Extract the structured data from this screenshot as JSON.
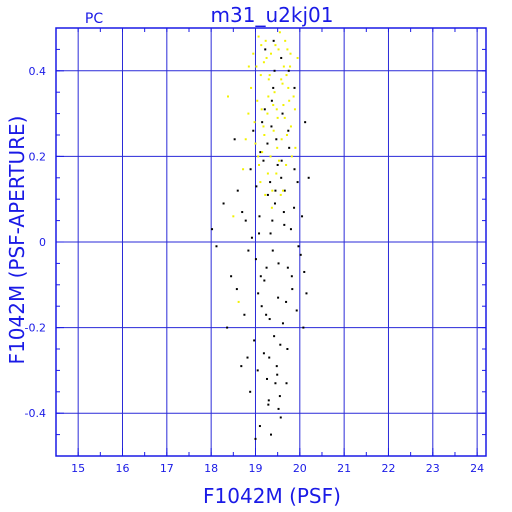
{
  "chart_data": {
    "type": "scatter",
    "title": "m31_u2kj01",
    "corner_label": "PC",
    "xlabel": "F1042M (PSF)",
    "ylabel": "F1042M (PSF-APERTURE)",
    "xlim": [
      14.5,
      24.2
    ],
    "ylim": [
      -0.5,
      0.5
    ],
    "grid": true,
    "x_ticks": [
      15,
      16,
      17,
      18,
      19,
      20,
      21,
      22,
      23,
      24
    ],
    "y_ticks": [
      -0.4,
      -0.2,
      0,
      0.2,
      0.4
    ],
    "x_tick_labels": [
      "15",
      "16",
      "17",
      "18",
      "19",
      "20",
      "21",
      "22",
      "23",
      "24"
    ],
    "y_tick_labels": [
      "-0.4",
      "-0.2",
      "0",
      "0.2",
      "0.4"
    ],
    "colors": {
      "axis": "#1a1ae6",
      "grid": "#2a2ad8",
      "text": "#1a1ae6",
      "series_black": "#000000",
      "series_yellow": "#f2f200"
    },
    "series": [
      {
        "color": "#000000",
        "values": [
          [
            19.12,
            -0.08
          ],
          [
            19.34,
            0.02
          ],
          [
            19.51,
            -0.13
          ],
          [
            19.28,
            0.11
          ],
          [
            19.65,
            0.04
          ],
          [
            19.42,
            -0.22
          ],
          [
            19.18,
            0.19
          ],
          [
            19.73,
            -0.06
          ],
          [
            19.36,
            0.27
          ],
          [
            19.49,
            -0.31
          ],
          [
            19.01,
            -0.04
          ],
          [
            19.87,
            0.08
          ],
          [
            19.24,
            -0.17
          ],
          [
            19.58,
            0.15
          ],
          [
            19.39,
            -0.02
          ],
          [
            19.62,
            -0.19
          ],
          [
            19.09,
            0.06
          ],
          [
            19.76,
            0.22
          ],
          [
            19.31,
            -0.27
          ],
          [
            19.44,
            0.09
          ],
          [
            18.92,
            0.01
          ],
          [
            19.97,
            -0.01
          ],
          [
            19.21,
            0.31
          ],
          [
            19.55,
            -0.36
          ],
          [
            19.66,
            0.12
          ],
          [
            19.14,
            -0.15
          ],
          [
            19.47,
            0.24
          ],
          [
            19.83,
            -0.11
          ],
          [
            19.33,
            0.14
          ],
          [
            19.52,
            -0.05
          ],
          [
            18.84,
            -0.02
          ],
          [
            20.05,
            0.06
          ],
          [
            19.26,
            -0.32
          ],
          [
            19.61,
            0.3
          ],
          [
            19.02,
            0.13
          ],
          [
            19.72,
            -0.25
          ],
          [
            19.4,
            0.36
          ],
          [
            19.57,
            -0.41
          ],
          [
            19.2,
            -0.09
          ],
          [
            19.88,
            0.17
          ],
          [
            18.78,
            0.05
          ],
          [
            20.1,
            -0.07
          ],
          [
            19.37,
            0.33
          ],
          [
            19.48,
            -0.29
          ],
          [
            19.11,
            0.21
          ],
          [
            19.69,
            -0.14
          ],
          [
            19.29,
            -0.38
          ],
          [
            19.59,
            0.19
          ],
          [
            19.06,
            -0.12
          ],
          [
            19.8,
            0.03
          ],
          [
            18.97,
            -0.23
          ],
          [
            19.95,
            0.14
          ],
          [
            19.35,
            -0.45
          ],
          [
            19.43,
            0.4
          ],
          [
            19.15,
            0.28
          ],
          [
            19.7,
            -0.33
          ],
          [
            19.25,
            -0.06
          ],
          [
            19.64,
            0.07
          ],
          [
            18.89,
            0.17
          ],
          [
            20.02,
            -0.03
          ],
          [
            19.38,
            0.05
          ],
          [
            19.5,
            0.18
          ],
          [
            19.19,
            -0.26
          ],
          [
            19.74,
            0.26
          ],
          [
            19.32,
            -0.18
          ],
          [
            19.56,
            -0.24
          ],
          [
            19.08,
            0.02
          ],
          [
            19.82,
            -0.08
          ],
          [
            19.45,
            0.12
          ],
          [
            19.27,
            0.23
          ],
          [
            18.02,
            0.03
          ],
          [
            18.12,
            -0.01
          ],
          [
            18.28,
            0.09
          ],
          [
            18.45,
            -0.08
          ],
          [
            18.6,
            0.12
          ],
          [
            18.75,
            -0.17
          ],
          [
            18.36,
            -0.2
          ],
          [
            18.53,
            0.24
          ],
          [
            18.68,
            -0.29
          ],
          [
            18.88,
            -0.35
          ],
          [
            19.1,
            -0.43
          ],
          [
            19.3,
            -0.37
          ],
          [
            19.45,
            -0.33
          ],
          [
            19.0,
            -0.46
          ],
          [
            19.52,
            -0.39
          ],
          [
            19.22,
            0.45
          ],
          [
            19.41,
            0.47
          ],
          [
            19.58,
            0.43
          ],
          [
            19.75,
            0.4
          ],
          [
            19.88,
            0.36
          ],
          [
            20.12,
            0.28
          ],
          [
            20.2,
            0.15
          ],
          [
            20.15,
            -0.12
          ],
          [
            20.08,
            -0.2
          ],
          [
            19.93,
            -0.16
          ],
          [
            18.58,
            -0.11
          ],
          [
            18.7,
            0.07
          ],
          [
            18.82,
            -0.27
          ],
          [
            18.95,
            0.26
          ],
          [
            19.05,
            -0.3
          ]
        ]
      },
      {
        "color": "#f2f200",
        "values": [
          [
            19.12,
            0.39
          ],
          [
            19.35,
            0.44
          ],
          [
            19.48,
            0.31
          ],
          [
            19.23,
            0.47
          ],
          [
            19.61,
            0.37
          ],
          [
            19.04,
            0.33
          ],
          [
            19.72,
            0.45
          ],
          [
            19.41,
            0.26
          ],
          [
            19.19,
            0.42
          ],
          [
            19.55,
            0.49
          ],
          [
            18.98,
            0.28
          ],
          [
            19.86,
            0.34
          ],
          [
            19.3,
            0.38
          ],
          [
            19.66,
            0.29
          ],
          [
            19.15,
            0.21
          ],
          [
            19.47,
            0.16
          ],
          [
            19.78,
            0.41
          ],
          [
            19.07,
            0.48
          ],
          [
            19.38,
            0.12
          ],
          [
            19.59,
            0.24
          ],
          [
            18.9,
            0.36
          ],
          [
            19.9,
            0.22
          ],
          [
            19.27,
            0.3
          ],
          [
            19.52,
            0.45
          ],
          [
            19.69,
            0.18
          ],
          [
            19.11,
            0.14
          ],
          [
            19.43,
            0.35
          ],
          [
            19.8,
            0.27
          ],
          [
            19.02,
            0.41
          ],
          [
            19.63,
            0.32
          ],
          [
            18.84,
            0.3
          ],
          [
            19.95,
            0.43
          ],
          [
            19.34,
            0.2
          ],
          [
            19.57,
            0.11
          ],
          [
            19.2,
            0.25
          ],
          [
            19.74,
            0.36
          ],
          [
            19.45,
            0.46
          ],
          [
            19.08,
            0.18
          ],
          [
            19.67,
            0.47
          ],
          [
            19.29,
            0.34
          ],
          [
            18.78,
            0.24
          ],
          [
            18.85,
            0.41
          ],
          [
            19.0,
            0.23
          ],
          [
            19.37,
            0.08
          ],
          [
            19.5,
            0.29
          ],
          [
            19.82,
            0.2
          ],
          [
            19.14,
            0.31
          ],
          [
            19.58,
            0.38
          ],
          [
            19.25,
            0.43
          ],
          [
            19.71,
            0.25
          ],
          [
            18.38,
            0.34
          ],
          [
            18.5,
            0.06
          ],
          [
            18.62,
            -0.14
          ],
          [
            18.72,
            0.17
          ],
          [
            19.32,
            0.39
          ],
          [
            19.49,
            0.22
          ],
          [
            19.64,
            0.41
          ],
          [
            19.18,
            0.27
          ],
          [
            19.76,
            0.33
          ],
          [
            19.06,
            0.2
          ],
          [
            19.22,
            0.11
          ],
          [
            19.4,
            0.32
          ],
          [
            19.53,
            0.19
          ],
          [
            19.7,
            0.39
          ],
          [
            19.89,
            0.31
          ],
          [
            19.13,
            0.46
          ],
          [
            19.28,
            0.16
          ],
          [
            19.62,
            0.12
          ],
          [
            19.79,
            0.44
          ],
          [
            18.95,
            0.44
          ]
        ]
      }
    ]
  }
}
